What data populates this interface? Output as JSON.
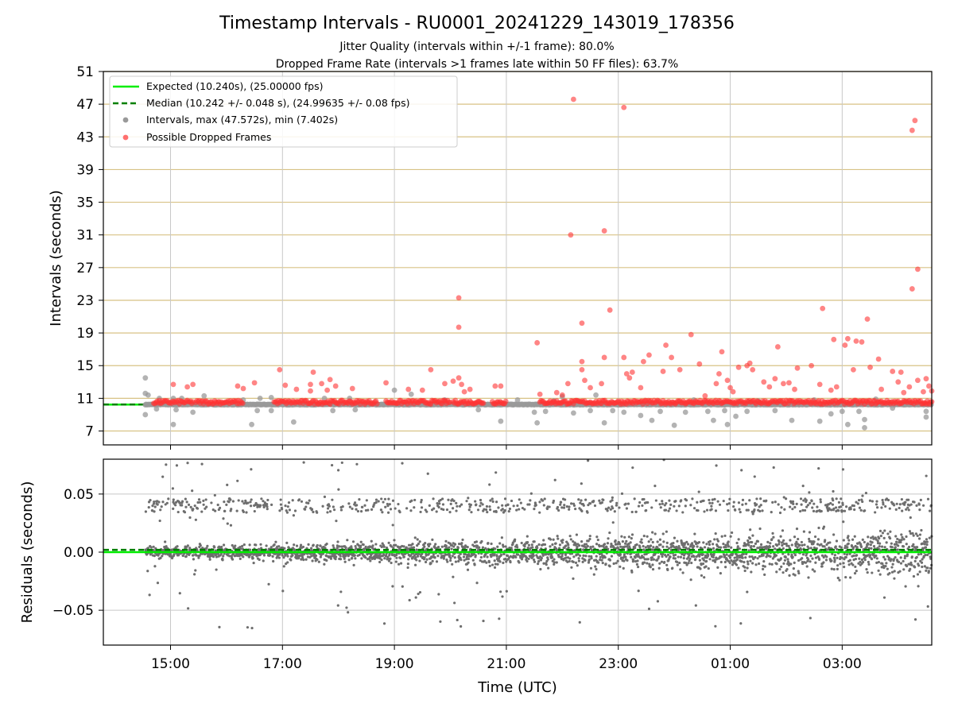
{
  "figure": {
    "title": "Timestamp Intervals - RU0001_20241229_143019_178356",
    "subtitle_1": "Jitter Quality (intervals within +/-1 frame): 80.0%",
    "subtitle_2": "Dropped Frame Rate (intervals >1 frames late within 50 FF files): 63.7%"
  },
  "colors": {
    "expected": "#00ee00",
    "median": "#008000",
    "intervals": "#999999",
    "dropped": "#ff3333",
    "residuals": "#6e6e6e",
    "hgrid_top": "#d8c285",
    "grid": "#c8c8c8"
  },
  "chart_data": [
    {
      "type": "scatter",
      "panel": "intervals",
      "ylabel": "Intervals (seconds)",
      "ylim": [
        5.3,
        51
      ],
      "yticks": [
        7,
        11,
        15,
        19,
        23,
        27,
        31,
        35,
        39,
        43,
        47,
        51
      ],
      "xlim_hours": [
        13.8,
        28.6
      ],
      "grid": true,
      "legend_position": "top-left",
      "legend": {
        "expected": "Expected (10.240s), (25.00000 fps)",
        "median": "Median (10.242 +/- 0.048 s), (24.99635 +/- 0.08 fps)",
        "intervals": "Intervals, max (47.572s), min (7.402s)",
        "dropped": "Possible Dropped Frames"
      },
      "expected_value": 10.24,
      "median_value": 10.242,
      "series": [
        {
          "name": "Intervals, max (47.572s), min (7.402s)",
          "points_hours_seconds": [
            [
              14.55,
              13.5
            ],
            [
              14.55,
              11.6
            ],
            [
              14.55,
              9.0
            ],
            [
              14.6,
              11.4
            ],
            [
              14.75,
              9.7
            ],
            [
              14.8,
              11.0
            ],
            [
              15.05,
              7.8
            ],
            [
              15.05,
              11.0
            ],
            [
              15.1,
              9.6
            ],
            [
              15.2,
              11.0
            ],
            [
              15.4,
              9.3
            ],
            [
              15.6,
              11.3
            ],
            [
              16.3,
              10.8
            ],
            [
              16.45,
              7.8
            ],
            [
              16.55,
              9.5
            ],
            [
              16.6,
              11.0
            ],
            [
              16.8,
              11.1
            ],
            [
              16.8,
              9.5
            ],
            [
              17.2,
              8.1
            ],
            [
              17.75,
              11.0
            ],
            [
              17.9,
              9.5
            ],
            [
              18.2,
              11.0
            ],
            [
              18.3,
              9.6
            ],
            [
              19.0,
              12.0
            ],
            [
              19.3,
              11.5
            ],
            [
              19.9,
              10.8
            ],
            [
              20.5,
              9.6
            ],
            [
              20.9,
              8.2
            ],
            [
              21.2,
              10.8
            ],
            [
              21.5,
              9.3
            ],
            [
              21.55,
              8.0
            ],
            [
              21.7,
              9.4
            ],
            [
              21.85,
              10.7
            ],
            [
              22.0,
              11.2
            ],
            [
              22.2,
              9.2
            ],
            [
              22.5,
              9.5
            ],
            [
              22.6,
              11.4
            ],
            [
              22.75,
              8.0
            ],
            [
              22.9,
              9.5
            ],
            [
              23.1,
              9.3
            ],
            [
              23.4,
              8.9
            ],
            [
              23.6,
              8.3
            ],
            [
              23.75,
              9.4
            ],
            [
              24.0,
              7.7
            ],
            [
              24.2,
              9.3
            ],
            [
              24.35,
              10.8
            ],
            [
              24.6,
              9.4
            ],
            [
              24.7,
              8.3
            ],
            [
              24.9,
              9.5
            ],
            [
              24.95,
              7.8
            ],
            [
              25.1,
              8.8
            ],
            [
              25.3,
              9.4
            ],
            [
              25.5,
              10.7
            ],
            [
              25.8,
              9.5
            ],
            [
              26.1,
              8.3
            ],
            [
              26.5,
              10.8
            ],
            [
              26.6,
              8.2
            ],
            [
              26.8,
              9.1
            ],
            [
              27.0,
              9.4
            ],
            [
              27.1,
              7.8
            ],
            [
              27.3,
              9.4
            ],
            [
              27.4,
              8.4
            ],
            [
              27.4,
              7.4
            ],
            [
              27.6,
              10.9
            ],
            [
              27.9,
              9.8
            ],
            [
              28.5,
              8.7
            ],
            [
              28.5,
              9.4
            ]
          ]
        },
        {
          "name": "Possible Dropped Frames",
          "points_hours_seconds": [
            [
              15.05,
              12.7
            ],
            [
              15.3,
              12.4
            ],
            [
              15.4,
              12.7
            ],
            [
              16.2,
              12.5
            ],
            [
              16.3,
              12.2
            ],
            [
              16.5,
              12.9
            ],
            [
              16.95,
              14.5
            ],
            [
              17.05,
              12.6
            ],
            [
              17.25,
              12.1
            ],
            [
              17.5,
              12.7
            ],
            [
              17.5,
              11.9
            ],
            [
              17.55,
              14.2
            ],
            [
              17.7,
              12.8
            ],
            [
              17.8,
              12.0
            ],
            [
              17.85,
              13.3
            ],
            [
              17.95,
              12.5
            ],
            [
              18.25,
              12.2
            ],
            [
              18.85,
              12.9
            ],
            [
              19.25,
              12.1
            ],
            [
              19.5,
              12.0
            ],
            [
              19.65,
              14.5
            ],
            [
              19.9,
              12.8
            ],
            [
              20.05,
              13.1
            ],
            [
              20.15,
              23.3
            ],
            [
              20.15,
              19.7
            ],
            [
              20.15,
              13.5
            ],
            [
              20.2,
              12.7
            ],
            [
              20.25,
              11.8
            ],
            [
              20.35,
              12.1
            ],
            [
              20.8,
              12.5
            ],
            [
              20.9,
              12.5
            ],
            [
              21.55,
              17.8
            ],
            [
              21.6,
              11.5
            ],
            [
              21.9,
              11.7
            ],
            [
              22.0,
              11.4
            ],
            [
              22.1,
              12.8
            ],
            [
              22.15,
              31.0
            ],
            [
              22.2,
              47.6
            ],
            [
              22.35,
              20.2
            ],
            [
              22.35,
              15.5
            ],
            [
              22.35,
              14.5
            ],
            [
              22.4,
              13.2
            ],
            [
              22.5,
              12.3
            ],
            [
              22.7,
              12.8
            ],
            [
              22.75,
              31.5
            ],
            [
              22.75,
              16.0
            ],
            [
              22.85,
              21.8
            ],
            [
              23.1,
              46.6
            ],
            [
              23.1,
              16.0
            ],
            [
              23.15,
              14.0
            ],
            [
              23.2,
              13.5
            ],
            [
              23.25,
              14.2
            ],
            [
              23.4,
              12.3
            ],
            [
              23.45,
              15.5
            ],
            [
              23.55,
              16.3
            ],
            [
              23.8,
              14.3
            ],
            [
              23.85,
              17.5
            ],
            [
              23.95,
              16.0
            ],
            [
              24.1,
              14.5
            ],
            [
              24.3,
              18.8
            ],
            [
              24.45,
              15.2
            ],
            [
              24.55,
              11.3
            ],
            [
              24.75,
              12.8
            ],
            [
              24.8,
              14.0
            ],
            [
              24.85,
              16.7
            ],
            [
              24.95,
              13.2
            ],
            [
              25.0,
              12.3
            ],
            [
              25.05,
              11.8
            ],
            [
              25.15,
              14.8
            ],
            [
              25.3,
              15.0
            ],
            [
              25.35,
              15.3
            ],
            [
              25.4,
              14.5
            ],
            [
              25.6,
              13.0
            ],
            [
              25.7,
              12.4
            ],
            [
              25.8,
              13.4
            ],
            [
              25.85,
              17.3
            ],
            [
              25.95,
              12.8
            ],
            [
              26.05,
              12.9
            ],
            [
              26.15,
              12.1
            ],
            [
              26.2,
              14.7
            ],
            [
              26.45,
              15.0
            ],
            [
              26.6,
              12.7
            ],
            [
              26.65,
              22.0
            ],
            [
              26.8,
              12.0
            ],
            [
              26.85,
              18.2
            ],
            [
              26.9,
              12.4
            ],
            [
              27.05,
              17.5
            ],
            [
              27.1,
              18.3
            ],
            [
              27.2,
              14.5
            ],
            [
              27.25,
              18.0
            ],
            [
              27.35,
              17.9
            ],
            [
              27.45,
              20.7
            ],
            [
              27.5,
              14.8
            ],
            [
              27.65,
              15.8
            ],
            [
              27.7,
              12.1
            ],
            [
              27.9,
              14.3
            ],
            [
              28.0,
              13.0
            ],
            [
              28.05,
              14.2
            ],
            [
              28.1,
              11.7
            ],
            [
              28.2,
              12.4
            ],
            [
              28.25,
              43.8
            ],
            [
              28.3,
              45.0
            ],
            [
              28.35,
              26.8
            ],
            [
              28.25,
              24.4
            ],
            [
              28.35,
              13.2
            ],
            [
              28.45,
              11.8
            ],
            [
              28.5,
              13.4
            ],
            [
              28.55,
              12.5
            ],
            [
              28.6,
              11.9
            ]
          ]
        }
      ]
    },
    {
      "type": "scatter",
      "panel": "residuals",
      "ylabel": "Residuals (seconds)",
      "xlabel": "Time (UTC)",
      "ylim": [
        -0.08,
        0.08
      ],
      "yticks": [
        0.05,
        0.0,
        -0.05
      ],
      "ytick_labels": [
        "0.05",
        "0.00",
        "−0.05"
      ],
      "xlim_hours": [
        13.8,
        28.6
      ],
      "xticks_hours": [
        15,
        17,
        19,
        21,
        23,
        25,
        27
      ],
      "xtick_labels": [
        "15:00",
        "17:00",
        "19:00",
        "21:00",
        "23:00",
        "01:00",
        "03:00"
      ],
      "grid": true,
      "zero_line": 0.0,
      "median_residual": 0.002,
      "data_start_hours": 14.55
    }
  ]
}
